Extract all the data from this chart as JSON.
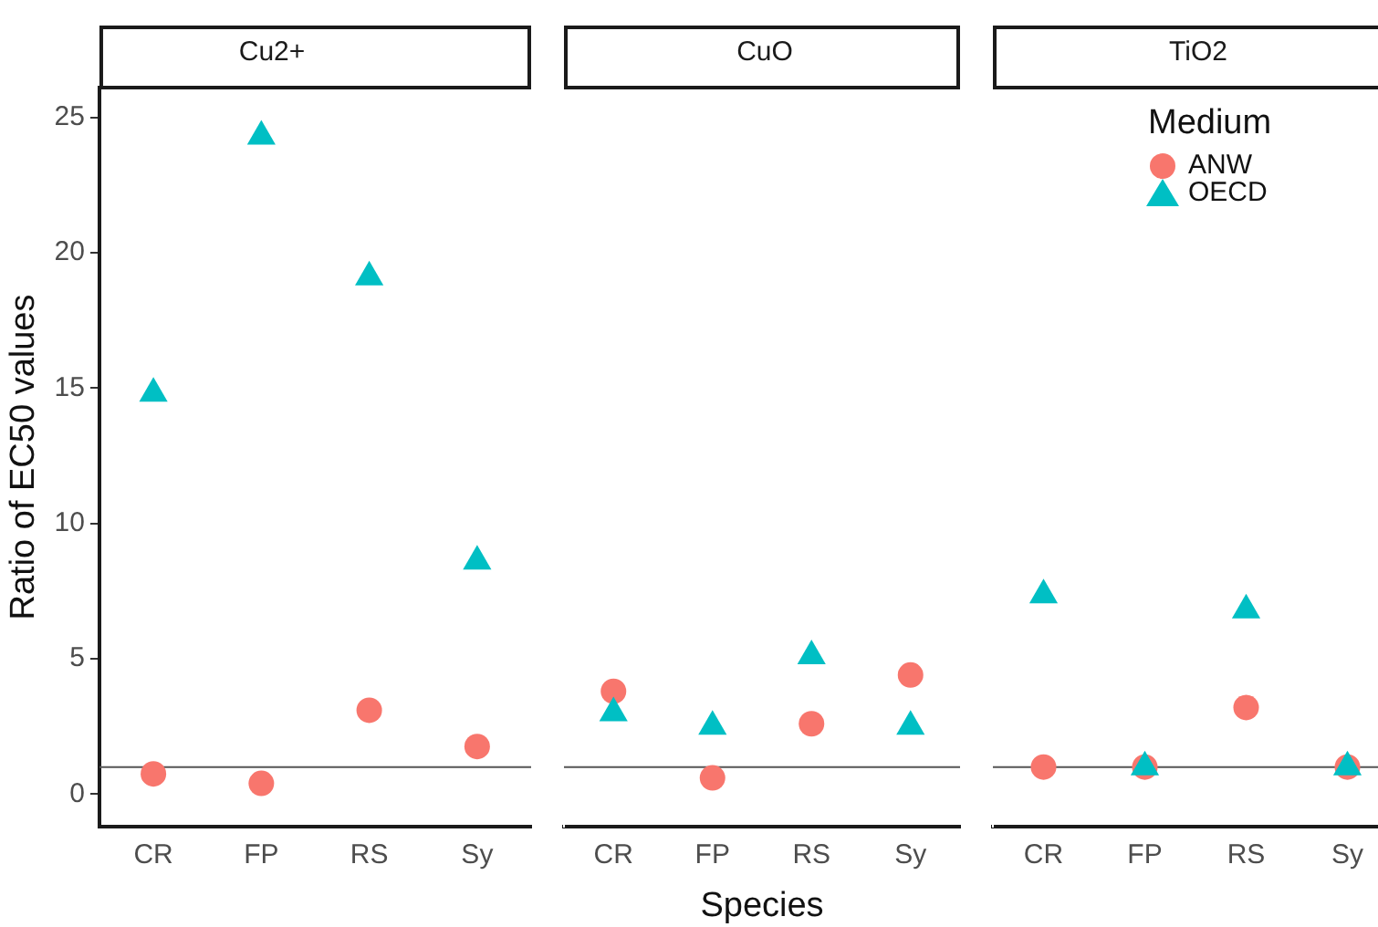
{
  "chart_data": [
    {
      "type": "scatter",
      "title": "Cu2+",
      "ylabel": "Ratio of EC50 values",
      "categories": [
        "CR",
        "FP",
        "RS",
        "Sy"
      ],
      "ylim": [
        -1.2,
        26.1
      ],
      "yticks": [
        0,
        5,
        10,
        15,
        20,
        25
      ],
      "grid": false,
      "legend": false,
      "series": [
        {
          "color": "#f8766d",
          "marker": "circle",
          "values": [
            0.75,
            0.4,
            3.1,
            1.76
          ]
        },
        {
          "color": "#00bfc4",
          "marker": "triangle",
          "values": [
            14.8,
            24.3,
            19.1,
            8.6
          ]
        }
      ],
      "ref_lines": [
        {
          "axis": "y",
          "value": 1,
          "color": "#555555"
        }
      ]
    },
    {
      "type": "scatter",
      "title": "CuO",
      "xlabel": "Species",
      "categories": [
        "CR",
        "FP",
        "RS",
        "Sy"
      ],
      "ylim": [
        -1.2,
        26.1
      ],
      "yticks": [
        0,
        5,
        10,
        15,
        20,
        25
      ],
      "tick_labels": "x",
      "grid": false,
      "legend": false,
      "series": [
        {
          "color": "#f8766d",
          "marker": "circle",
          "values": [
            3.8,
            0.6,
            2.6,
            4.4
          ]
        },
        {
          "color": "#00bfc4",
          "marker": "triangle",
          "values": [
            3.0,
            2.5,
            5.1,
            2.5
          ]
        }
      ],
      "ref_lines": [
        {
          "axis": "y",
          "value": 1,
          "color": "#555555"
        }
      ]
    },
    {
      "type": "scatter",
      "title": "TiO2",
      "legend_title": "Medium",
      "categories": [
        "CR",
        "FP",
        "RS",
        "Sy"
      ],
      "ylim": [
        -1.2,
        26.1
      ],
      "yticks": [
        0,
        5,
        10,
        15,
        20,
        25
      ],
      "tick_labels": "x",
      "grid": false,
      "legend": "top right",
      "series": [
        {
          "name": "ANW",
          "color": "#f8766d",
          "marker": "circle",
          "values": [
            1.0,
            1.0,
            3.2,
            1.0
          ]
        },
        {
          "name": "OECD",
          "color": "#00bfc4",
          "marker": "triangle",
          "values": [
            7.35,
            1.0,
            6.8,
            1.0
          ]
        }
      ],
      "ref_lines": [
        {
          "axis": "y",
          "value": 1,
          "color": "#555555"
        }
      ]
    }
  ]
}
